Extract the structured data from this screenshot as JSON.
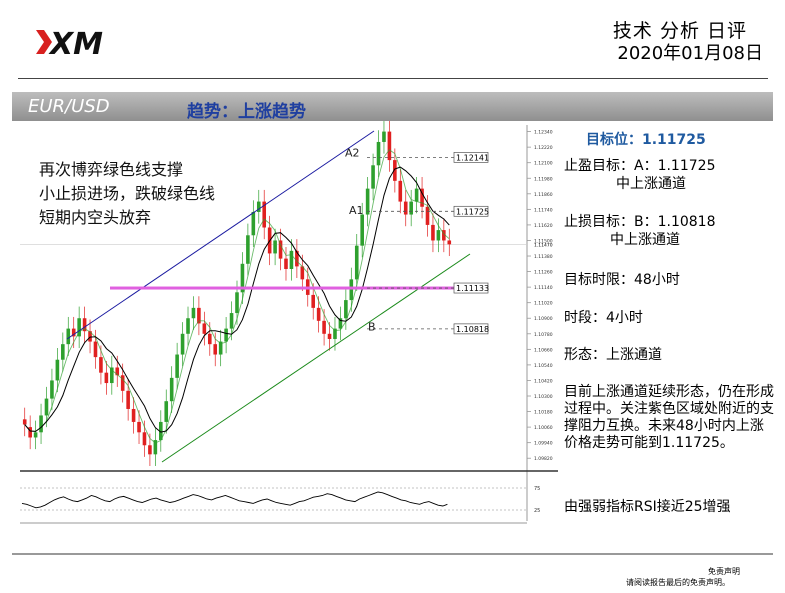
{
  "header": {
    "title": "技术 分析 日评",
    "date": "2020年01月08日"
  },
  "banner": {
    "pair": "EUR/USD",
    "trend": "趋势：上涨趋势"
  },
  "colors": {
    "upper_channel": "#1a1aa0",
    "lower_channel": "#1a8a1a",
    "support_zone": "#e060e0",
    "moving_average_slow": "#000000",
    "moving_average_fast": "#2ea02e",
    "bull_candle": "#2ea02e",
    "bear_candle": "#e02020",
    "title_blue": "#1f5aa0"
  },
  "chart_data": {
    "type": "candlestick",
    "note_lines": [
      "再次博弈绿色线支撑",
      "小止损进场，跌破绿色线",
      "短期内空头放弃"
    ],
    "price_ticks": [
      1.1234,
      1.1222,
      1.121,
      1.1198,
      1.1186,
      1.1174,
      1.1162,
      1.115,
      1.1138,
      1.1126,
      1.1114,
      1.1102,
      1.109,
      1.1078,
      1.1066,
      1.1054,
      1.1042,
      1.103,
      1.1018,
      1.1006,
      1.0994,
      1.0982
    ],
    "price_tick_labels": [
      "1.12340",
      "1.12220",
      "1.12100",
      "1.11980",
      "1.11860",
      "1.11740",
      "1.11620",
      "1.11500",
      "1.11380",
      "1.11260",
      "1.11140",
      "1.11020",
      "1.10900",
      "1.10780",
      "1.10660",
      "1.10540",
      "1.10420",
      "1.10300",
      "1.10180",
      "1.10060",
      "1.09940",
      "1.09820"
    ],
    "current_price_label": "1.11470",
    "levels": [
      {
        "label": "1.12141",
        "value": 1.12141
      },
      {
        "label": "1.11725",
        "value": 1.11725
      },
      {
        "label": "1.11133",
        "value": 1.11133
      },
      {
        "label": "1.10818",
        "value": 1.10818
      }
    ],
    "markers": [
      {
        "label": "A2",
        "value": 1.1214
      },
      {
        "label": "A1",
        "value": 1.1172
      },
      {
        "label": "B",
        "value": 1.1082
      }
    ],
    "rsi": {
      "ticks": [
        "75",
        "25"
      ],
      "values": [
        40,
        38,
        34,
        30,
        32,
        36,
        42,
        48,
        52,
        55,
        50,
        46,
        44,
        48,
        52,
        58,
        55,
        50,
        46,
        44,
        50,
        54,
        56,
        52,
        48,
        44,
        42,
        46,
        50,
        52,
        48,
        45,
        42,
        44,
        48,
        52,
        56,
        60,
        58,
        54,
        50,
        48,
        52,
        55,
        58,
        54,
        50,
        46,
        44,
        42,
        40,
        44,
        48,
        50,
        46,
        42,
        40,
        38,
        36,
        40,
        44,
        46,
        50,
        54,
        56,
        58,
        62,
        60,
        56,
        52,
        48,
        46,
        44,
        50,
        54,
        58,
        62,
        66,
        64,
        60,
        56,
        52,
        48,
        46,
        42,
        40,
        38,
        42,
        44,
        40,
        36,
        34,
        38
      ]
    },
    "candles": [
      [
        1.1012,
        1.1008
      ],
      [
        1.1006,
        1.0998
      ],
      [
        1.0998,
        1.1002
      ],
      [
        1.1002,
        1.1015
      ],
      [
        1.1015,
        1.1028
      ],
      [
        1.1028,
        1.1042
      ],
      [
        1.1042,
        1.1058
      ],
      [
        1.1058,
        1.107
      ],
      [
        1.107,
        1.1082
      ],
      [
        1.1082,
        1.1076
      ],
      [
        1.1076,
        1.109
      ],
      [
        1.109,
        1.108
      ],
      [
        1.108,
        1.1072
      ],
      [
        1.1072,
        1.106
      ],
      [
        1.106,
        1.1048
      ],
      [
        1.1048,
        1.104
      ],
      [
        1.104,
        1.1052
      ],
      [
        1.1052,
        1.1046
      ],
      [
        1.1046,
        1.1034
      ],
      [
        1.1034,
        1.102
      ],
      [
        1.102,
        1.101
      ],
      [
        1.101,
        1.1002
      ],
      [
        1.1002,
        1.0992
      ],
      [
        1.0992,
        1.0985
      ],
      [
        1.0985,
        1.0996
      ],
      [
        1.0996,
        1.101
      ],
      [
        1.101,
        1.1026
      ],
      [
        1.1026,
        1.1044
      ],
      [
        1.1044,
        1.1062
      ],
      [
        1.1062,
        1.1078
      ],
      [
        1.1078,
        1.109
      ],
      [
        1.109,
        1.1098
      ],
      [
        1.1098,
        1.1086
      ],
      [
        1.1086,
        1.1078
      ],
      [
        1.1078,
        1.107
      ],
      [
        1.107,
        1.1062
      ],
      [
        1.1062,
        1.1072
      ],
      [
        1.1072,
        1.1082
      ],
      [
        1.1082,
        1.1094
      ],
      [
        1.1094,
        1.111
      ],
      [
        1.111,
        1.1132
      ],
      [
        1.1132,
        1.1154
      ],
      [
        1.1154,
        1.1172
      ],
      [
        1.1172,
        1.118
      ],
      [
        1.118,
        1.116
      ],
      [
        1.116,
        1.114
      ],
      [
        1.114,
        1.115
      ],
      [
        1.115,
        1.1136
      ],
      [
        1.1136,
        1.1128
      ],
      [
        1.1128,
        1.1142
      ],
      [
        1.1142,
        1.113
      ],
      [
        1.113,
        1.112
      ],
      [
        1.112,
        1.1108
      ],
      [
        1.1108,
        1.1098
      ],
      [
        1.1098,
        1.1088
      ],
      [
        1.1088,
        1.1078
      ],
      [
        1.1078,
        1.1074
      ],
      [
        1.1074,
        1.1082
      ],
      [
        1.1082,
        1.109
      ],
      [
        1.109,
        1.1104
      ],
      [
        1.1104,
        1.112
      ],
      [
        1.112,
        1.1146
      ],
      [
        1.1146,
        1.117
      ],
      [
        1.117,
        1.119
      ],
      [
        1.119,
        1.1208
      ],
      [
        1.1208,
        1.1226
      ],
      [
        1.1226,
        1.1234
      ],
      [
        1.1234,
        1.1212
      ],
      [
        1.1212,
        1.1196
      ],
      [
        1.1196,
        1.118
      ],
      [
        1.118,
        1.117
      ],
      [
        1.117,
        1.118
      ],
      [
        1.118,
        1.119
      ],
      [
        1.119,
        1.1176
      ],
      [
        1.1176,
        1.1162
      ],
      [
        1.1162,
        1.115
      ],
      [
        1.115,
        1.1158
      ],
      [
        1.1158,
        1.115
      ],
      [
        1.115,
        1.1147
      ]
    ]
  },
  "panel": {
    "target_title": "目标位：1.11725",
    "take_profit_line1": "止盈目标：A：1.11725",
    "take_profit_line2": "中上涨通道",
    "stop_loss_line1": "止损目标：B：1.10818",
    "stop_loss_line2": "中上涨通道",
    "horizon": "目标时限：48小时",
    "timeframe": "时段：4小时",
    "pattern": "形态：上涨通道",
    "description": "目前上涨通道延续形态，仍在形成过程中。关注紫色区域处附近的支撑阻力互换。未来48小时内上涨价格走势可能到1.11725。",
    "rsi_note": "由强弱指标RSI接近25增强"
  },
  "footer": {
    "disclaimer_title": "免责声明",
    "disclaimer_text": "请阅读报告最后的免责声明。"
  }
}
